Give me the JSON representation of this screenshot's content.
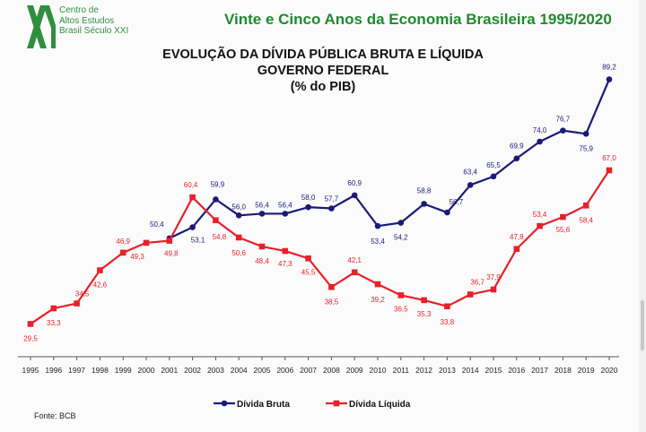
{
  "header": {
    "title": "Vinte e Cinco Anos da Economia Brasileira 1995/2020",
    "logo_lines": [
      "Centro de",
      "Altos Estudos",
      "Brasil Século XXI"
    ],
    "logo_mark": "XXI"
  },
  "source": "Fonte: BCB",
  "colors": {
    "bruta": "#1a1a7a",
    "liquida": "#e8202a",
    "header_green": "#1f8a2e"
  },
  "chart_data": {
    "type": "line",
    "title_lines": [
      "EVOLUÇÃO DA DÍVIDA PÚBLICA BRUTA E LÍQUIDA",
      "GOVERNO FEDERAL",
      "(% do PIB)"
    ],
    "x": [
      "1995",
      "1996",
      "1997",
      "1998",
      "1999",
      "2000",
      "2001",
      "2002",
      "2003",
      "2004",
      "2005",
      "2006",
      "2007",
      "2008",
      "2009",
      "2010",
      "2011",
      "2012",
      "2013",
      "2014",
      "2015",
      "2016",
      "2017",
      "2018",
      "2019",
      "2020"
    ],
    "ylim": [
      25,
      95
    ],
    "series": [
      {
        "name": "Dívida Bruta",
        "values": [
          null,
          null,
          null,
          null,
          null,
          null,
          50.4,
          53.1,
          59.9,
          56.0,
          56.4,
          56.4,
          58.0,
          57.7,
          60.9,
          53.4,
          54.2,
          58.8,
          56.7,
          63.4,
          65.5,
          69.9,
          74.0,
          76.7,
          75.9,
          89.2
        ],
        "labels": [
          "",
          "",
          "",
          "",
          "",
          "",
          "50,4",
          "53,1",
          "59,9",
          "56,0",
          "56,4",
          "56,4",
          "58,0",
          "57,7",
          "60,9",
          "53,4",
          "54,2",
          "58,8",
          "56,7",
          "63,4",
          "65,5",
          "69,9",
          "74,0",
          "76,7",
          "75,9",
          "89,2"
        ]
      },
      {
        "name": "Dívida Líquida",
        "values": [
          29.5,
          33.3,
          34.5,
          42.6,
          46.9,
          49.3,
          49.8,
          60.4,
          54.8,
          50.6,
          48.4,
          47.3,
          45.5,
          38.5,
          42.1,
          39.2,
          36.5,
          35.3,
          33.8,
          36.7,
          37.9,
          47.8,
          53.4,
          55.6,
          58.4,
          67.0
        ],
        "labels": [
          "29,5",
          "33,3",
          "34,5",
          "42,6",
          "46,9",
          "49,3",
          "49,8",
          "60,4",
          "54,8",
          "50,6",
          "48,4",
          "47,3",
          "45,5",
          "38,5",
          "42,1",
          "39,2",
          "36,5",
          "35,3",
          "33,8",
          "36,7",
          "37,9",
          "47,8",
          "53,4",
          "55,6",
          "58,4",
          "67,0"
        ]
      }
    ],
    "legend": {
      "position": "bottom-center"
    }
  }
}
